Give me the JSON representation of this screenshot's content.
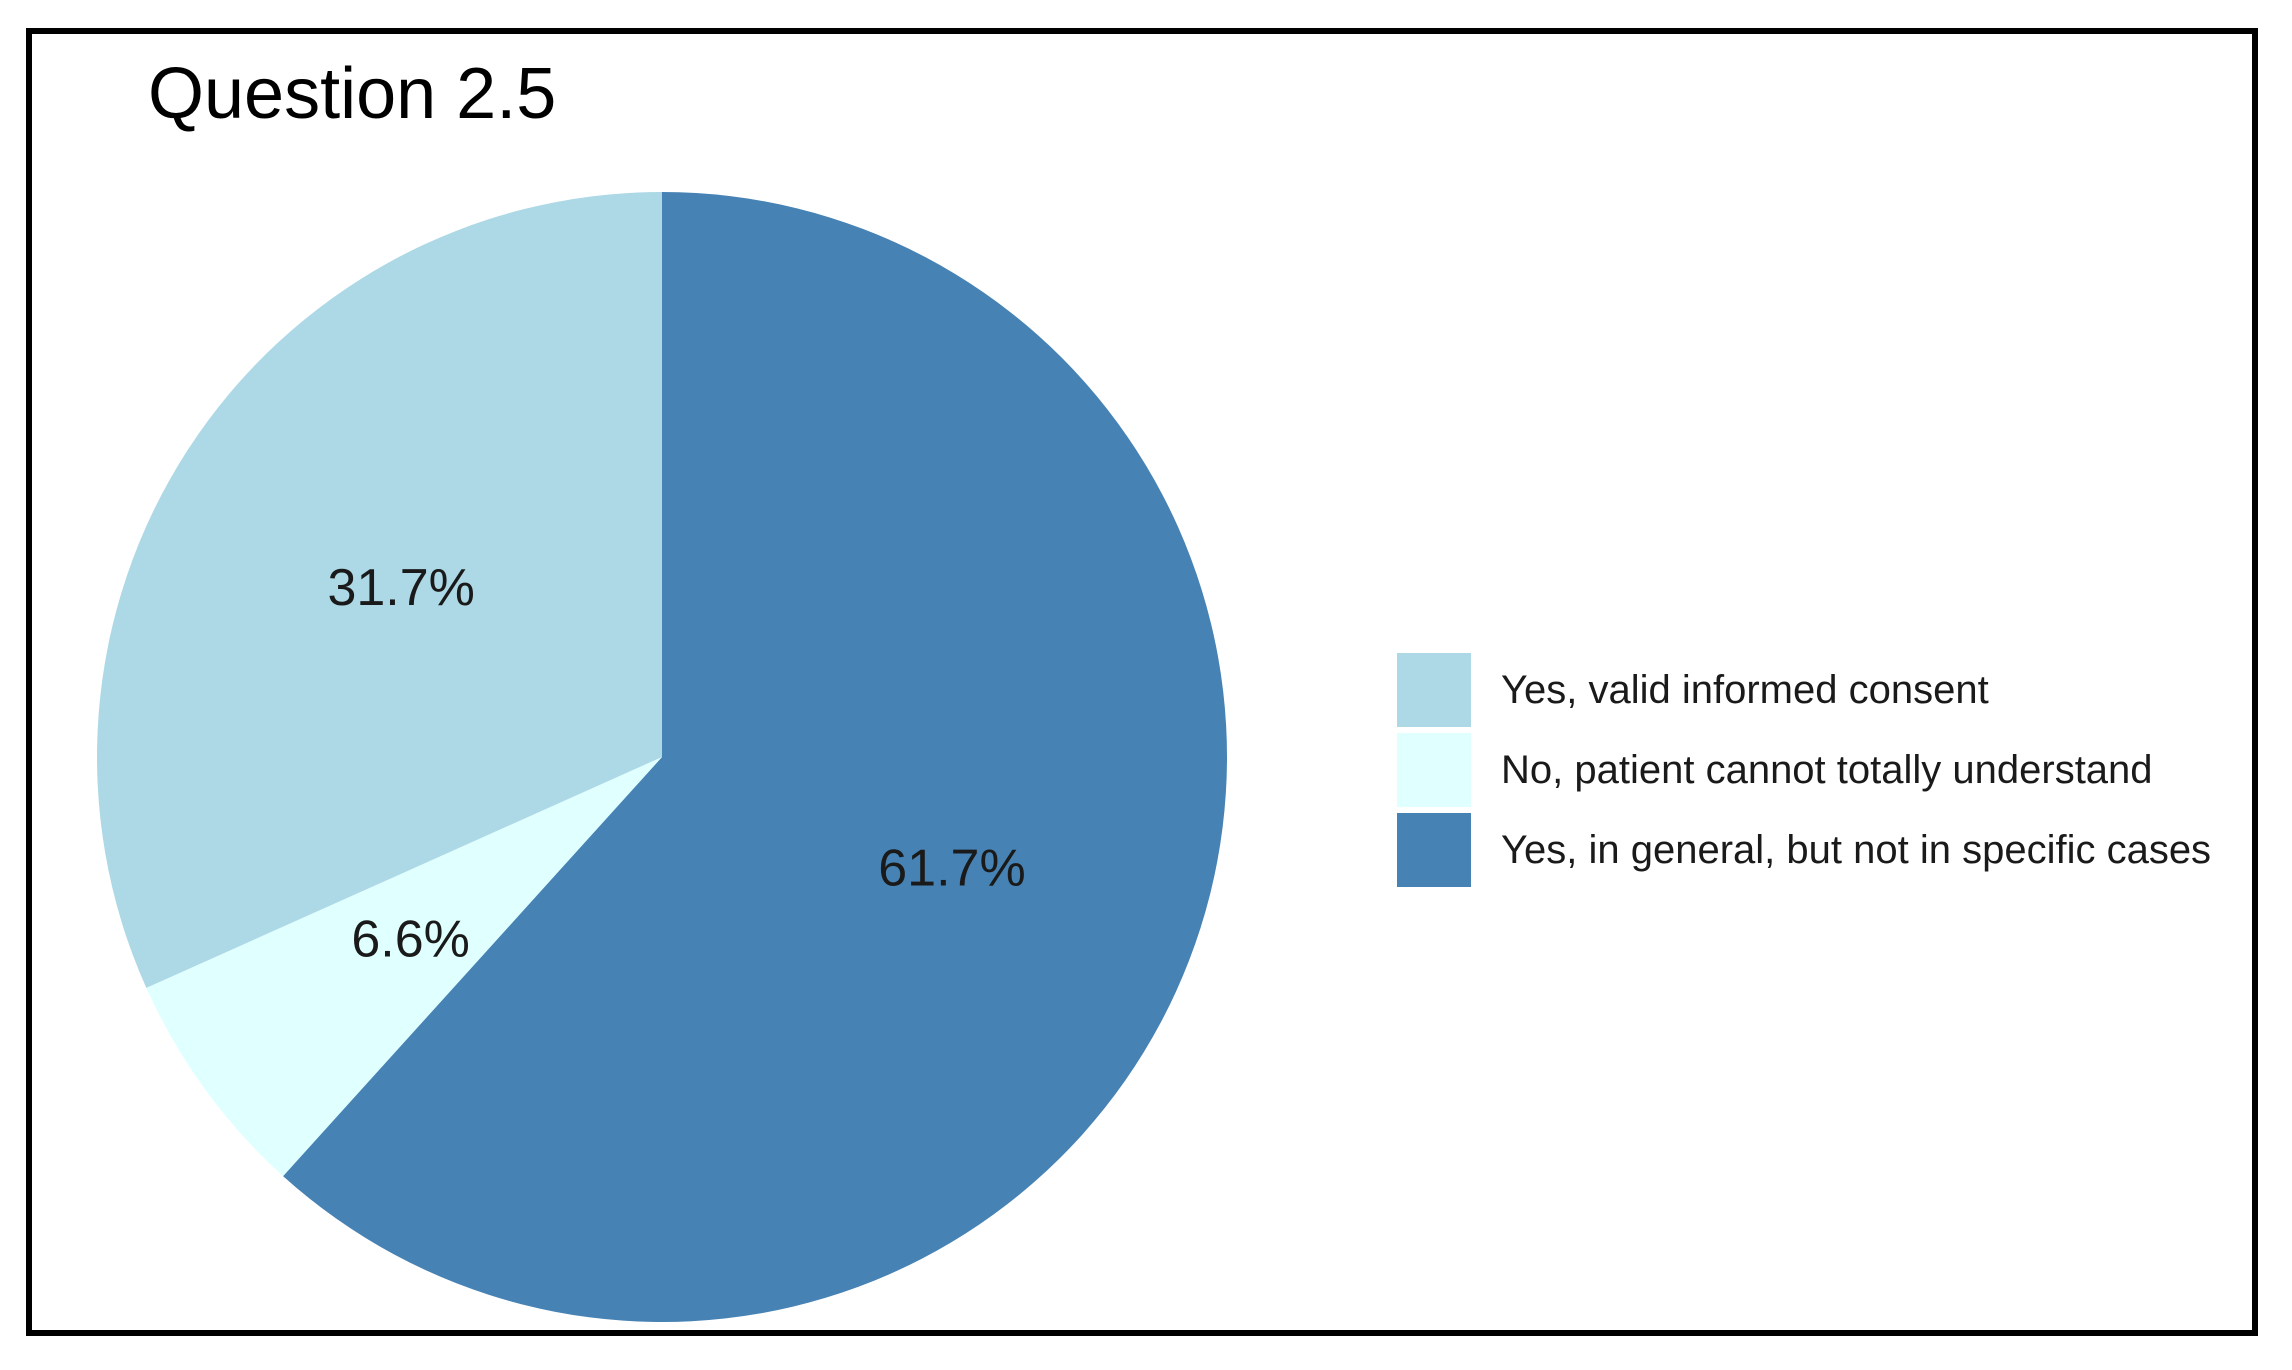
{
  "chart_data": {
    "type": "pie",
    "title": "Question 2.5",
    "slices": [
      {
        "name": "Yes, in general, but not in specific cases",
        "value": 61.7,
        "label": "61.7%",
        "color": "#4682B4"
      },
      {
        "name": "No, patient cannot totally understand",
        "value": 6.6,
        "label": "6.6%",
        "color": "#E0FFFF"
      },
      {
        "name": "Yes, valid informed consent",
        "value": 31.7,
        "label": "31.7%",
        "color": "#ADD8E6"
      }
    ],
    "legend": [
      {
        "label": "Yes, valid informed consent",
        "color": "#ADD8E6"
      },
      {
        "label": "No, patient cannot totally understand",
        "color": "#E0FFFF"
      },
      {
        "label": "Yes, in general, but not in specific cases",
        "color": "#4682B4"
      }
    ],
    "legend_position": "right",
    "start_angle": "12 o'clock",
    "direction": "clockwise"
  }
}
